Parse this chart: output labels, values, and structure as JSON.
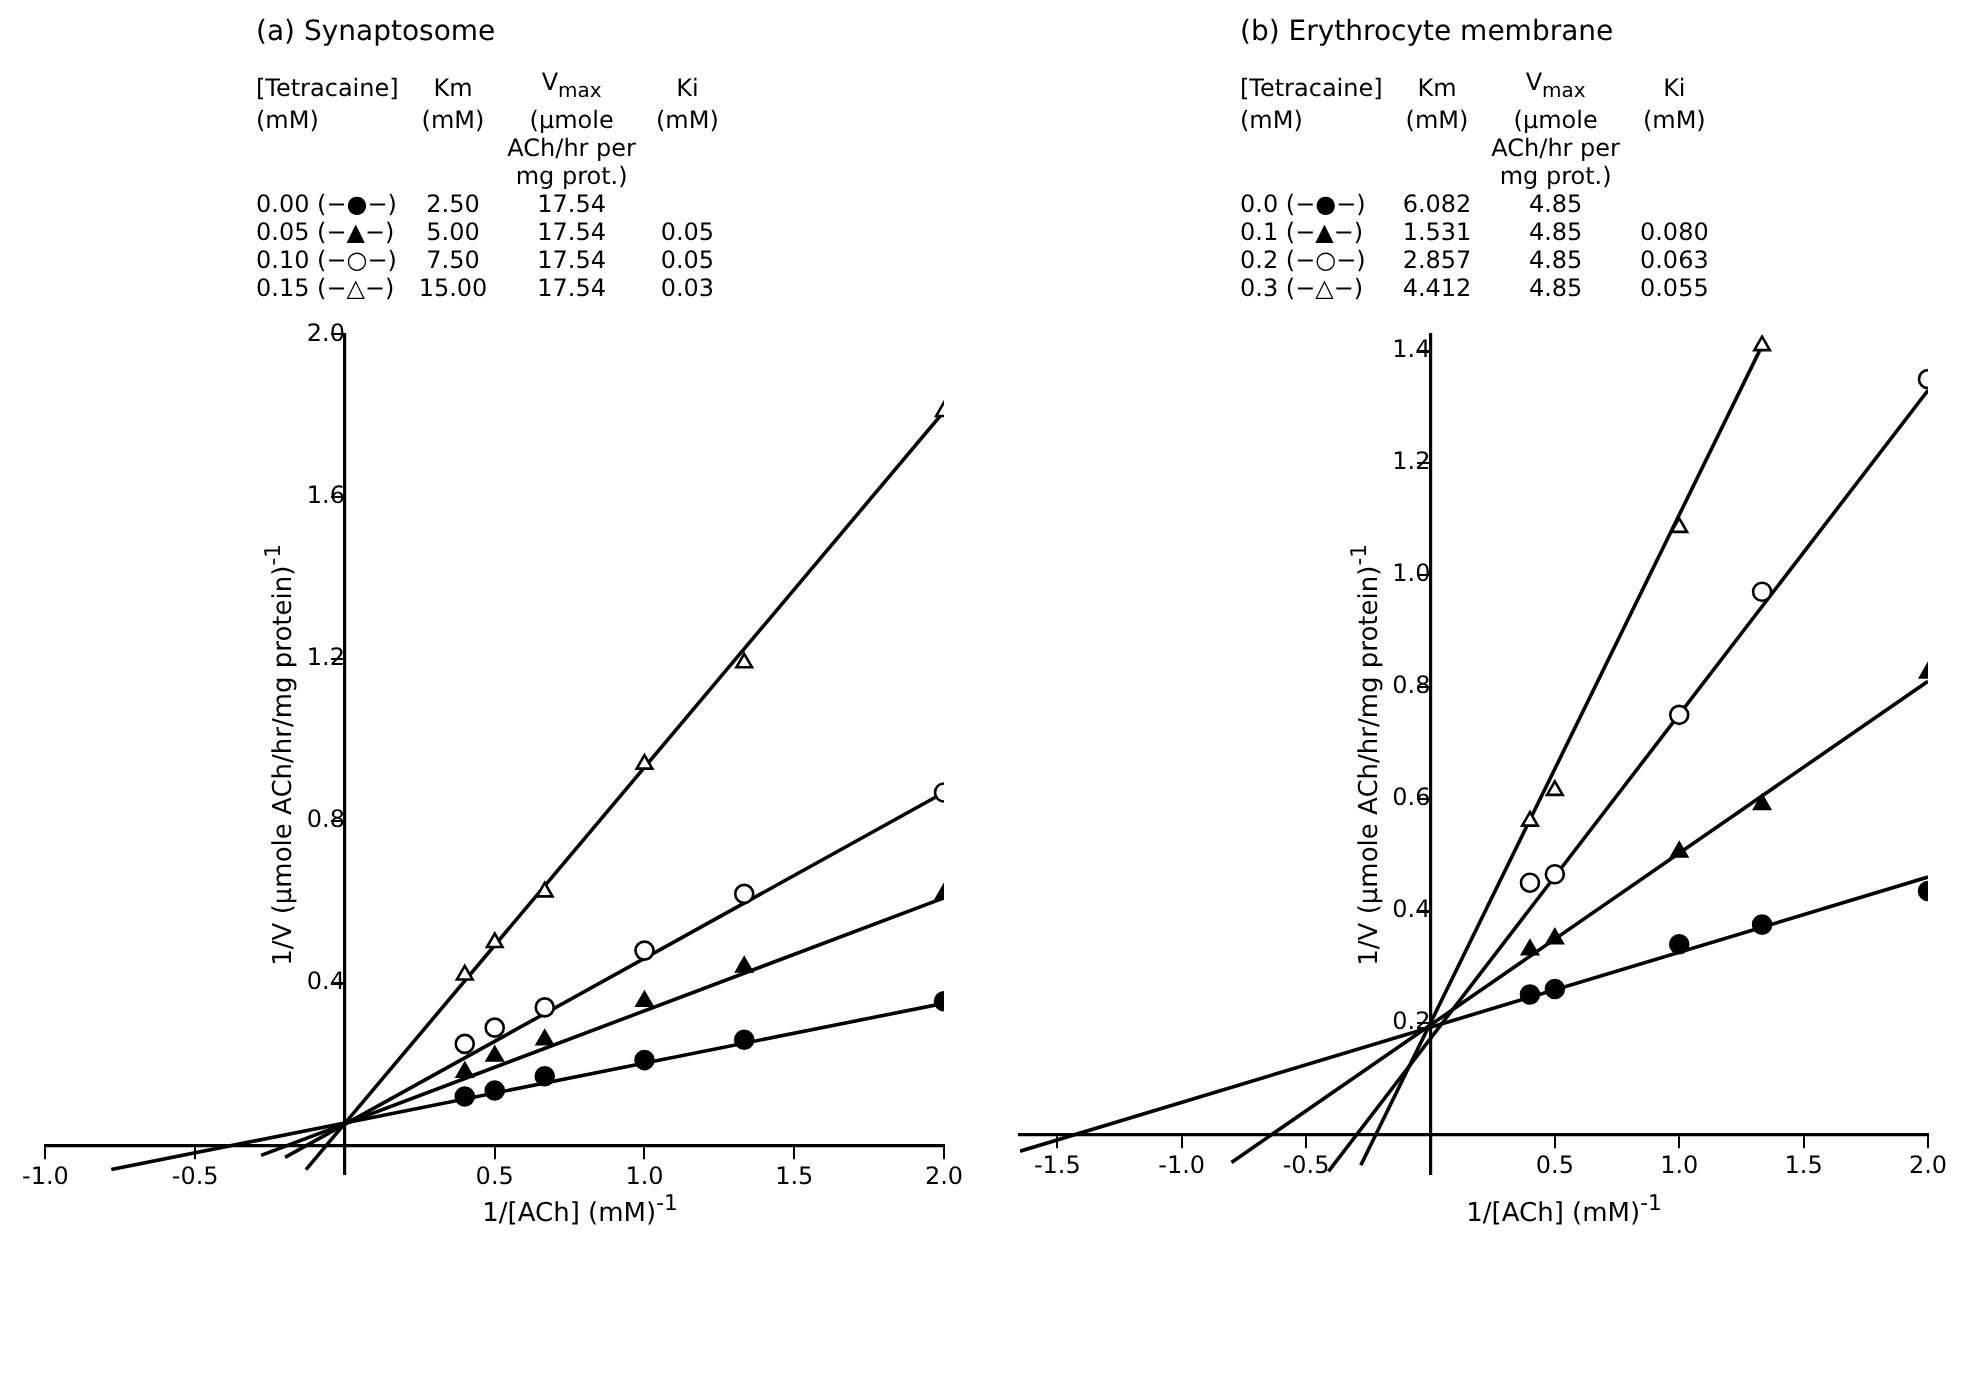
{
  "chart_data": [
    {
      "type": "scatter",
      "title": "(a) Synaptosome",
      "xlabel": "1/[ACh] (mM)$^{-1}$",
      "ylabel": "1/V (μmole ACh/hr/mg protein)$^{-1}$",
      "annotations": [
        "[Tetracaine]\tKm\tV$_{max}$\tKi",
        "(mM)\t(mM)\t(μmole\t(mM)",
        "\t\tACh/hr per\t",
        "\t\tmg prot.)\t",
        "0.00  (−●−)\t2.50\t17.54\t",
        "0.05  (−▲−)\t5.00\t17.54\t0.05",
        "0.10  (−○−)\t7.50\t17.54\t0.05",
        "0.15  (−△−)\t15.00\t17.54\t0.03"
      ],
      "xlim": [
        -1.0,
        2.0
      ],
      "ylim": [
        -0.07,
        2.0
      ],
      "xticks": [
        {
          "value": -1,
          "label": "-1.0"
        },
        -0.5,
        0.5,
        {
          "value": 1,
          "label": "1.0"
        },
        1.5,
        {
          "value": 2,
          "label": "2.0"
        }
      ],
      "yticks": [
        0.4,
        0.8,
        1.2,
        1.6,
        {
          "value": 2,
          "label": "2.0"
        }
      ],
      "grid": false,
      "legend": false,
      "x": [
        0.4,
        0.5,
        0.667,
        1.0,
        1.333,
        2.0
      ],
      "series": [
        {
          "type": "scatter",
          "marker": "circle",
          "color": "#000000",
          "values": [
            0.12,
            0.135,
            0.17,
            0.21,
            0.26,
            0.355
          ]
        },
        {
          "type": "scatter",
          "marker": "triangle",
          "color": "#000000",
          "values": [
            0.18,
            0.22,
            0.26,
            0.355,
            0.44,
            0.62
          ]
        },
        {
          "type": "scatter",
          "marker": "circle",
          "color": "#ffffff",
          "values": [
            0.25,
            0.29,
            0.34,
            0.48,
            0.62,
            0.87
          ]
        },
        {
          "type": "scatter",
          "marker": "triangle",
          "color": "#ffffff",
          "values": [
            0.42,
            0.5,
            0.625,
            0.94,
            1.19,
            1.81
          ]
        },
        {
          "type": "line",
          "color": "#000000",
          "x": [
            -0.78,
            2.0
          ],
          "values": [
            -0.06,
            0.35
          ]
        },
        {
          "type": "line",
          "color": "#000000",
          "x": [
            -0.28,
            2.0
          ],
          "values": [
            -0.025,
            0.61
          ]
        },
        {
          "type": "line",
          "color": "#000000",
          "x": [
            -0.2,
            2.0
          ],
          "values": [
            -0.03,
            0.87
          ]
        },
        {
          "type": "line",
          "color": "#000000",
          "x": [
            -0.13,
            2.0
          ],
          "values": [
            -0.06,
            1.81
          ]
        }
      ]
    },
    {
      "type": "scatter",
      "title": "(b) Erythrocyte membrane",
      "xlabel": "1/[ACh] (mM)$^{-1}$",
      "ylabel": "1/V (μmole ACh/hr/mg protein)$^{-1}$",
      "annotations": [
        "[Tetracaine]\tKm\tV$_{max}$\tKi",
        "(mM)\t(mM)\t(μmole\t(mM)",
        "\t\tACh/hr per\t",
        "\t\tmg prot.)\t",
        "0.0  (−●−)\t6.082\t4.85\t",
        "0.1  (−▲−)\t1.531\t4.85\t0.080",
        "0.2  (−○−)\t2.857\t4.85\t0.063",
        "0.3  (−△−)\t4.412\t4.85\t0.055"
      ],
      "xlim": [
        -1.65,
        2.0
      ],
      "ylim": [
        -0.07,
        1.43
      ],
      "xticks": [
        -1.5,
        {
          "value": -1,
          "label": "-1.0"
        },
        -0.5,
        0.5,
        {
          "value": 1,
          "label": "1.0"
        },
        1.5,
        {
          "value": 2,
          "label": "2.0"
        }
      ],
      "yticks": [
        0.2,
        0.4,
        0.6,
        0.8,
        {
          "value": 1,
          "label": "1.0"
        },
        1.2,
        1.4
      ],
      "grid": false,
      "legend": false,
      "x": [
        0.4,
        0.5,
        1.0,
        1.333,
        2.0
      ],
      "series": [
        {
          "type": "scatter",
          "marker": "circle",
          "color": "#000000",
          "values": [
            0.25,
            0.26,
            0.34,
            0.375,
            0.435
          ]
        },
        {
          "type": "scatter",
          "marker": "triangle",
          "color": "#000000",
          "values": [
            0.33,
            0.35,
            0.505,
            0.59,
            0.825
          ]
        },
        {
          "type": "scatter",
          "marker": "circle",
          "color": "#ffffff",
          "values": [
            0.45,
            0.465,
            0.75,
            0.97,
            1.35
          ]
        },
        {
          "type": "scatter",
          "marker": "triangle",
          "color": "#ffffff",
          "values": [
            0.56,
            0.615,
            1.085,
            1.41,
            null
          ]
        },
        {
          "type": "line",
          "color": "#000000",
          "x": [
            -1.65,
            2.0
          ],
          "values": [
            -0.03,
            0.46
          ]
        },
        {
          "type": "line",
          "color": "#000000",
          "x": [
            -0.8,
            2.0
          ],
          "values": [
            -0.05,
            0.81
          ]
        },
        {
          "type": "line",
          "color": "#000000",
          "x": [
            -0.41,
            2.0
          ],
          "values": [
            -0.066,
            1.33
          ]
        },
        {
          "type": "line",
          "color": "#000000",
          "x": [
            -0.28,
            1.333
          ],
          "values": [
            -0.055,
            1.41
          ]
        }
      ]
    }
  ]
}
